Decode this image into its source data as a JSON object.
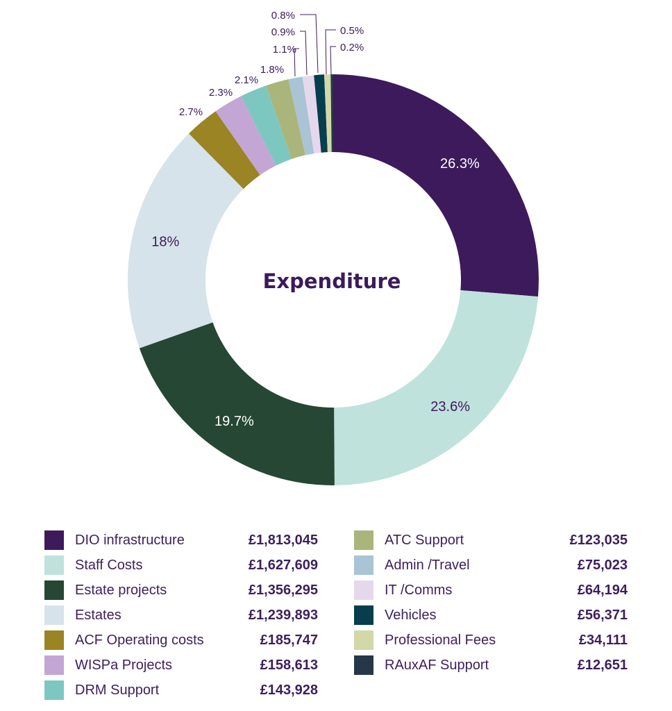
{
  "chart_data": {
    "type": "pie",
    "donut": true,
    "title": "Expenditure",
    "slices": [
      {
        "label": "DIO infrastructure",
        "value_text": "£1,813,045",
        "value": 1813045,
        "percent": 26.3,
        "percent_label": "26.3%",
        "color": "#3c1a5b"
      },
      {
        "label": "Staff Costs",
        "value_text": "£1,627,609",
        "value": 1627609,
        "percent": 23.6,
        "percent_label": "23.6%",
        "color": "#bfe2dc"
      },
      {
        "label": "Estate projects",
        "value_text": "£1,356,295",
        "value": 1356295,
        "percent": 19.7,
        "percent_label": "19.7%",
        "color": "#264733"
      },
      {
        "label": "Estates",
        "value_text": "£1,239,893",
        "value": 1239893,
        "percent": 18,
        "percent_label": "18%",
        "color": "#d6e3ea"
      },
      {
        "label": "ACF Operating costs",
        "value_text": "£185,747",
        "value": 185747,
        "percent": 2.7,
        "percent_label": "2.7%",
        "color": "#9a8424"
      },
      {
        "label": "WISPa Projects",
        "value_text": "£158,613",
        "value": 158613,
        "percent": 2.3,
        "percent_label": "2.3%",
        "color": "#c3a6d4"
      },
      {
        "label": "DRM Support",
        "value_text": "£143,928",
        "value": 143928,
        "percent": 2.1,
        "percent_label": "2.1%",
        "color": "#7cc8c0"
      },
      {
        "label": "ATC Support",
        "value_text": "£123,035",
        "value": 123035,
        "percent": 1.8,
        "percent_label": "1.8%",
        "color": "#aab57c"
      },
      {
        "label": "Admin /Travel",
        "value_text": "£75,023",
        "value": 75023,
        "percent": 1.1,
        "percent_label": "1.1%",
        "color": "#a9c4d4"
      },
      {
        "label": "IT /Comms",
        "value_text": "£64,194",
        "value": 64194,
        "percent": 0.9,
        "percent_label": "0.9%",
        "color": "#e6d8ec"
      },
      {
        "label": "Vehicles",
        "value_text": "£56,371",
        "value": 56371,
        "percent": 0.8,
        "percent_label": "0.8%",
        "color": "#063e4e"
      },
      {
        "label": "Professional Fees",
        "value_text": "£34,111",
        "value": 34111,
        "percent": 0.5,
        "percent_label": "0.5%",
        "color": "#d3d8a8"
      },
      {
        "label": "RAuxAF Support",
        "value_text": "£12,651",
        "value": 12651,
        "percent": 0.2,
        "percent_label": "0.2%",
        "color": "#263848"
      }
    ],
    "legend_placement": "bottom"
  }
}
